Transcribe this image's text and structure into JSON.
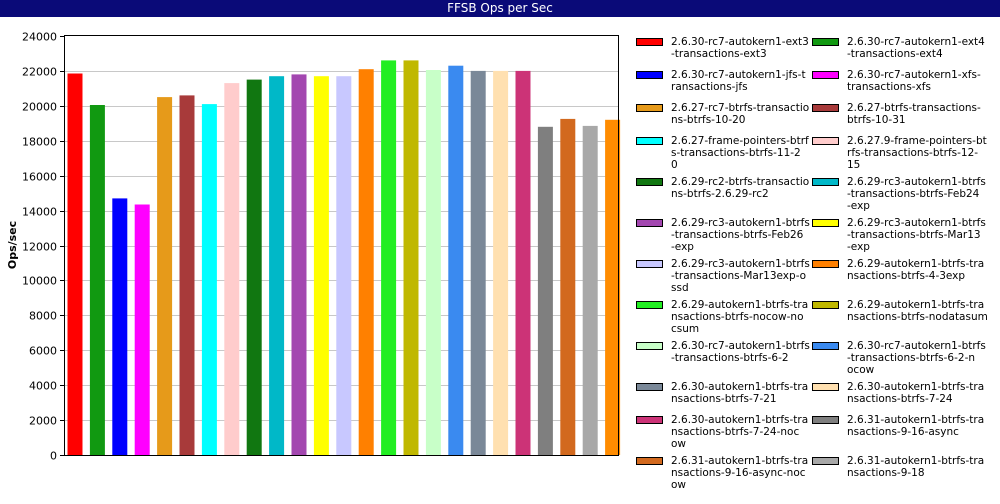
{
  "window_title": "FFSB Ops per Sec",
  "chart_data": {
    "type": "bar",
    "title": "FFSB Ops per Sec",
    "xlabel": "",
    "ylabel": "Ops/sec",
    "ylim": [
      0,
      24000
    ],
    "yticks": [
      0,
      2000,
      4000,
      6000,
      8000,
      10000,
      12000,
      14000,
      16000,
      18000,
      20000,
      22000,
      24000
    ],
    "grid": true,
    "legend_placement": "right",
    "series": [
      {
        "name": "2.6.30-rc7-autokern1-ext3-transactions-ext3",
        "value": 21850,
        "color": "#ff0000"
      },
      {
        "name": "2.6.30-rc7-autokern1-ext4-transactions-ext4",
        "value": 20050,
        "color": "#119911"
      },
      {
        "name": "2.6.30-rc7-autokern1-jfs-transactions-jfs",
        "value": 14700,
        "color": "#0000ff"
      },
      {
        "name": "2.6.30-rc7-autokern1-xfs-transactions-xfs",
        "value": 14350,
        "color": "#ff00ff"
      },
      {
        "name": "2.6.27-rc7-btrfs-transactions-btrfs-10-20",
        "value": 20500,
        "color": "#e69a1a"
      },
      {
        "name": "2.6.27-btrfs-transactions-btrfs-10-31",
        "value": 20600,
        "color": "#a83a3a"
      },
      {
        "name": "2.6.27-frame-pointers-btrfs-transactions-btrfs-11-20",
        "value": 20100,
        "color": "#00ffff"
      },
      {
        "name": "2.6.27.9-frame-pointers-btrfs-transactions-btrfs-12-15",
        "value": 21300,
        "color": "#ffcccc"
      },
      {
        "name": "2.6.29-rc2-btrfs-transactions-btrfs-2.6.29-rc2",
        "value": 21500,
        "color": "#117711"
      },
      {
        "name": "2.6.29-rc3-autokern1-btrfs-transactions-btrfs-Feb24-exp",
        "value": 21700,
        "color": "#00b8c8"
      },
      {
        "name": "2.6.29-rc3-autokern1-btrfs-transactions-btrfs-Feb26-exp",
        "value": 21800,
        "color": "#a347b0"
      },
      {
        "name": "2.6.29-rc3-autokern1-btrfs-transactions-btrfs-Mar13-exp",
        "value": 21700,
        "color": "#ffff00"
      },
      {
        "name": "2.6.29-rc3-autokern1-btrfs-transactions-Mar13exp-ossd",
        "value": 21700,
        "color": "#c8c8ff"
      },
      {
        "name": "2.6.29-autokern1-btrfs-transactions-btrfs-4-3exp",
        "value": 22100,
        "color": "#ff8000"
      },
      {
        "name": "2.6.29-autokern1-btrfs-transactions-btrfs-nocow-nocsum",
        "value": 22600,
        "color": "#22ee22"
      },
      {
        "name": "2.6.29-autokern1-btrfs-transactions-btrfs-nodatasum",
        "value": 22600,
        "color": "#c0b800"
      },
      {
        "name": "2.6.30-rc7-autokern1-btrfs-transactions-btrfs-6-2",
        "value": 22050,
        "color": "#c8ffc8"
      },
      {
        "name": "2.6.30-rc7-autokern1-btrfs-transactions-btrfs-6-2-nocow",
        "value": 22300,
        "color": "#3a8af0"
      },
      {
        "name": "2.6.30-autokern1-btrfs-transactions-btrfs-7-21",
        "value": 22000,
        "color": "#7a8898"
      },
      {
        "name": "2.6.30-autokern1-btrfs-transactions-btrfs-7-24",
        "value": 22000,
        "color": "#ffe0b0"
      },
      {
        "name": "2.6.30-autokern1-btrfs-transactions-btrfs-7-24-nocow",
        "value": 22000,
        "color": "#cc3377"
      },
      {
        "name": "2.6.31-autokern1-btrfs-transactions-9-16-async",
        "value": 18800,
        "color": "#7f7f7f"
      },
      {
        "name": "2.6.31-autokern1-btrfs-transactions-9-16-async-nocow",
        "value": 19250,
        "color": "#d2691e"
      },
      {
        "name": "2.6.31-autokern1-btrfs-transactions-9-18",
        "value": 18850,
        "color": "#a8a8a8"
      },
      {
        "name": "",
        "value": 19200,
        "color": "#ff8c00"
      }
    ]
  },
  "legend": [
    {
      "lines": [
        "2.6.30-rc7-autokern1-ext3",
        "-transactions-ext3"
      ],
      "color": "#ff0000"
    },
    {
      "lines": [
        "2.6.30-rc7-autokern1-ext4",
        "-transactions-ext4"
      ],
      "color": "#119911"
    },
    {
      "lines": [
        "2.6.30-rc7-autokern1-jfs-t",
        "ransactions-jfs"
      ],
      "color": "#0000ff"
    },
    {
      "lines": [
        "2.6.30-rc7-autokern1-xfs-",
        "transactions-xfs"
      ],
      "color": "#ff00ff"
    },
    {
      "lines": [
        "2.6.27-rc7-btrfs-transactio",
        "ns-btrfs-10-20"
      ],
      "color": "#e69a1a"
    },
    {
      "lines": [
        "2.6.27-btrfs-transactions-",
        "btrfs-10-31"
      ],
      "color": "#a83a3a"
    },
    {
      "lines": [
        "2.6.27-frame-pointers-btrf",
        "s-transactions-btrfs-11-2",
        "0"
      ],
      "color": "#00ffff"
    },
    {
      "lines": [
        "2.6.27.9-frame-pointers-bt",
        "rfs-transactions-btrfs-12-",
        "15"
      ],
      "color": "#ffcccc"
    },
    {
      "lines": [
        "2.6.29-rc2-btrfs-transactio",
        "ns-btrfs-2.6.29-rc2"
      ],
      "color": "#117711"
    },
    {
      "lines": [
        "2.6.29-rc3-autokern1-btrfs",
        "-transactions-btrfs-Feb24",
        "-exp"
      ],
      "color": "#00b8c8"
    },
    {
      "lines": [
        "2.6.29-rc3-autokern1-btrfs",
        "-transactions-btrfs-Feb26",
        "-exp"
      ],
      "color": "#a347b0"
    },
    {
      "lines": [
        "2.6.29-rc3-autokern1-btrfs",
        "-transactions-btrfs-Mar13",
        "-exp"
      ],
      "color": "#ffff00"
    },
    {
      "lines": [
        "2.6.29-rc3-autokern1-btrfs",
        "-transactions-Mar13exp-o",
        "ssd"
      ],
      "color": "#c8c8ff"
    },
    {
      "lines": [
        "2.6.29-autokern1-btrfs-tra",
        "nsactions-btrfs-4-3exp"
      ],
      "color": "#ff8000"
    },
    {
      "lines": [
        "2.6.29-autokern1-btrfs-tra",
        "nsactions-btrfs-nocow-no",
        "csum"
      ],
      "color": "#22ee22"
    },
    {
      "lines": [
        "2.6.29-autokern1-btrfs-tra",
        "nsactions-btrfs-nodatasum"
      ],
      "color": "#c0b800"
    },
    {
      "lines": [
        "2.6.30-rc7-autokern1-btrfs",
        "-transactions-btrfs-6-2"
      ],
      "color": "#c8ffc8"
    },
    {
      "lines": [
        "2.6.30-rc7-autokern1-btrfs",
        "-transactions-btrfs-6-2-n",
        "ocow"
      ],
      "color": "#3a8af0"
    },
    {
      "lines": [
        "2.6.30-autokern1-btrfs-tra",
        "nsactions-btrfs-7-21"
      ],
      "color": "#7a8898"
    },
    {
      "lines": [
        "2.6.30-autokern1-btrfs-tra",
        "nsactions-btrfs-7-24"
      ],
      "color": "#ffe0b0"
    },
    {
      "lines": [
        "2.6.30-autokern1-btrfs-tra",
        "nsactions-btrfs-7-24-noc",
        "ow"
      ],
      "color": "#cc3377"
    },
    {
      "lines": [
        "2.6.31-autokern1-btrfs-tra",
        "nsactions-9-16-async"
      ],
      "color": "#7f7f7f"
    },
    {
      "lines": [
        "2.6.31-autokern1-btrfs-tra",
        "nsactions-9-16-async-noc",
        "ow"
      ],
      "color": "#d2691e"
    },
    {
      "lines": [
        "2.6.31-autokern1-btrfs-tra",
        "nsactions-9-18"
      ],
      "color": "#a8a8a8"
    }
  ]
}
